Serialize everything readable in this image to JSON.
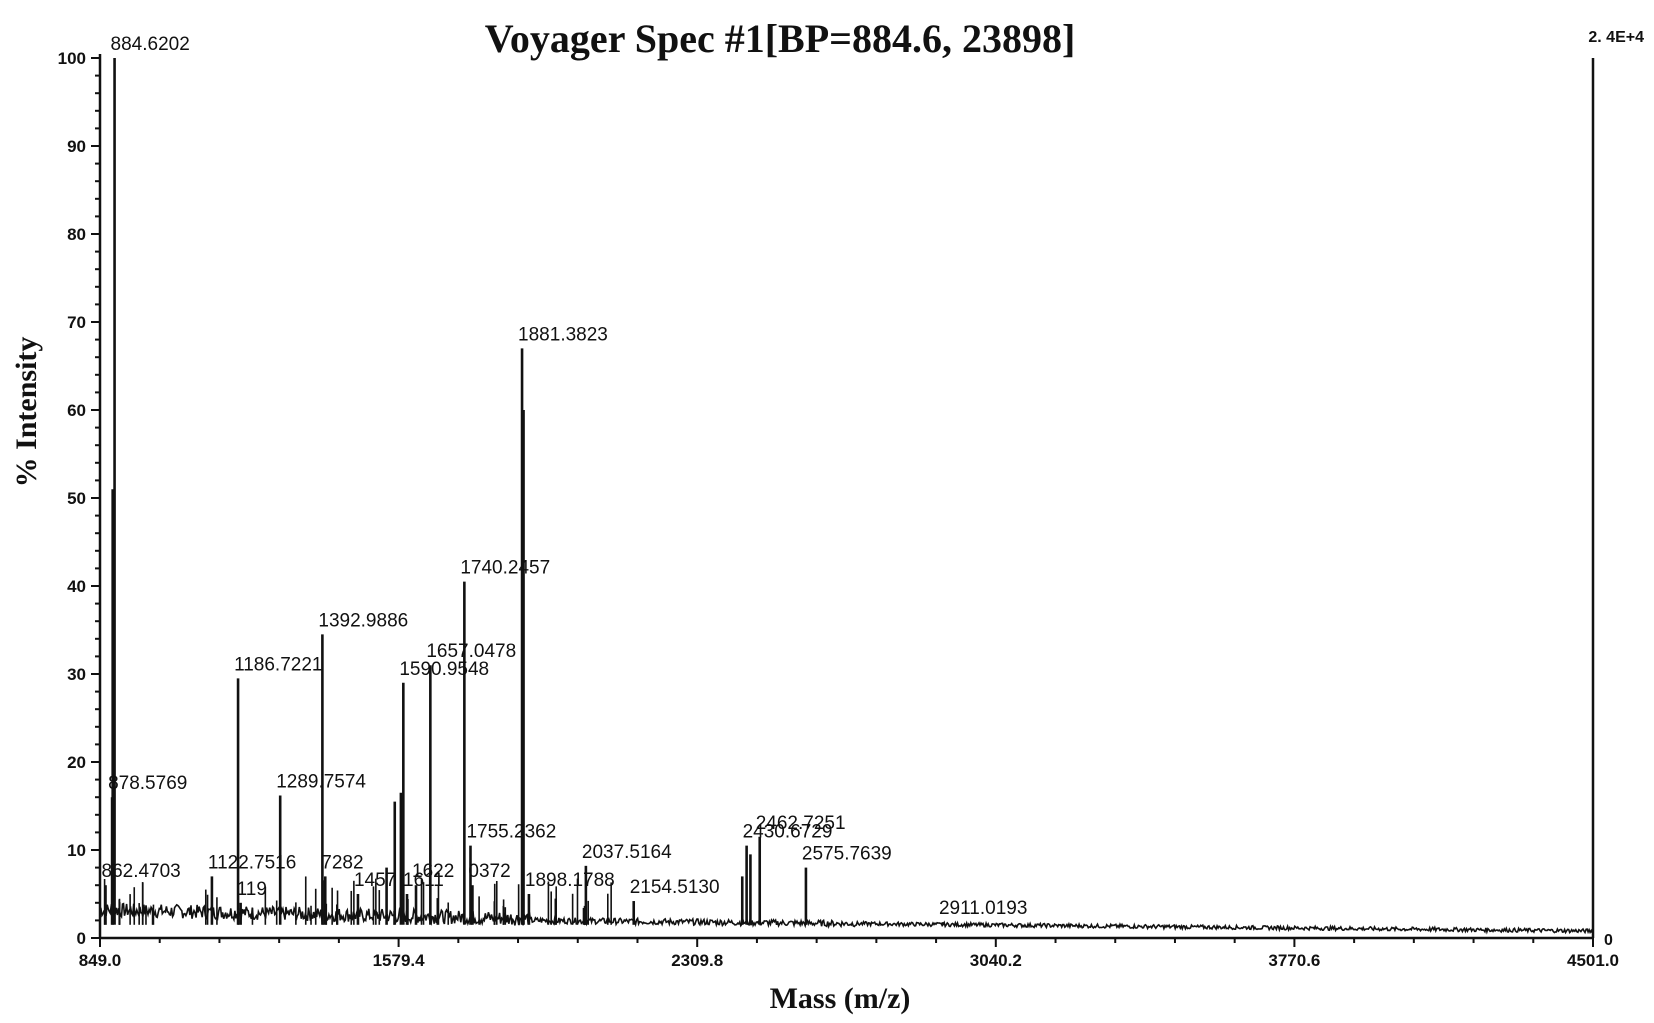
{
  "chart_data": {
    "type": "line",
    "title": "Voyager Spec #1[BP=884.6, 23898]",
    "xlabel": "Mass (m/z)",
    "ylabel": "% Intensity",
    "xlim": [
      849.0,
      4501.0
    ],
    "ylim": [
      0,
      100
    ],
    "x_ticks": [
      "849.0",
      "1579.4",
      "2309.8",
      "3040.2",
      "3770.6",
      "4501.0"
    ],
    "y_ticks": [
      "0",
      "10",
      "20",
      "30",
      "40",
      "50",
      "60",
      "70",
      "80",
      "90",
      "100"
    ],
    "right_axis": {
      "top_label": "2. 4E+4",
      "bottom_label": "0"
    },
    "grid": false,
    "peaks": [
      {
        "x": 878.5769,
        "y": 16,
        "label": "878.5769"
      },
      {
        "x": 884.6202,
        "y": 100,
        "label": "884.6202"
      },
      {
        "x": 880.0,
        "y": 51,
        "label": ""
      },
      {
        "x": 862.4703,
        "y": 6,
        "label": "862.4703"
      },
      {
        "x": 1122.7516,
        "y": 7,
        "label": "1122.7516"
      },
      {
        "x": 1186.7221,
        "y": 29.5,
        "label": "1186.7221"
      },
      {
        "x": 1193.0,
        "y": 4,
        "label": "119"
      },
      {
        "x": 1289.7574,
        "y": 16.2,
        "label": "1289.7574"
      },
      {
        "x": 1392.9886,
        "y": 34.5,
        "label": "1392.9886"
      },
      {
        "x": 1400.0,
        "y": 7,
        "label": "7282"
      },
      {
        "x": 1480.0,
        "y": 5,
        "label": "1457"
      },
      {
        "x": 1550.0,
        "y": 8,
        "label": ""
      },
      {
        "x": 1570.0,
        "y": 15.5,
        "label": ""
      },
      {
        "x": 1585.0,
        "y": 16.5,
        "label": ""
      },
      {
        "x": 1590.9548,
        "y": 29,
        "label": "1590.9548"
      },
      {
        "x": 1600.0,
        "y": 5,
        "label": "1611"
      },
      {
        "x": 1622.0,
        "y": 6,
        "label": "1622"
      },
      {
        "x": 1657.0478,
        "y": 31,
        "label": "1657.0478"
      },
      {
        "x": 1740.2457,
        "y": 40.5,
        "label": "1740.2457"
      },
      {
        "x": 1755.2362,
        "y": 10.5,
        "label": "1755.2362"
      },
      {
        "x": 1760.0,
        "y": 6,
        "label": "0372"
      },
      {
        "x": 1881.3823,
        "y": 67,
        "label": "1881.3823"
      },
      {
        "x": 1885.0,
        "y": 60,
        "label": ""
      },
      {
        "x": 1898.1788,
        "y": 5,
        "label": "1898.1788"
      },
      {
        "x": 2037.5164,
        "y": 8.2,
        "label": "2037.5164"
      },
      {
        "x": 2154.513,
        "y": 4.2,
        "label": "2154.5130"
      },
      {
        "x": 2420.0,
        "y": 7,
        "label": ""
      },
      {
        "x": 2430.6729,
        "y": 10.5,
        "label": "2430.6729"
      },
      {
        "x": 2440.0,
        "y": 9.5,
        "label": ""
      },
      {
        "x": 2462.7251,
        "y": 11.5,
        "label": "2462.7251"
      },
      {
        "x": 2575.7639,
        "y": 8,
        "label": "2575.7639"
      },
      {
        "x": 2911.0193,
        "y": 1.8,
        "label": "2911.0193"
      }
    ]
  }
}
